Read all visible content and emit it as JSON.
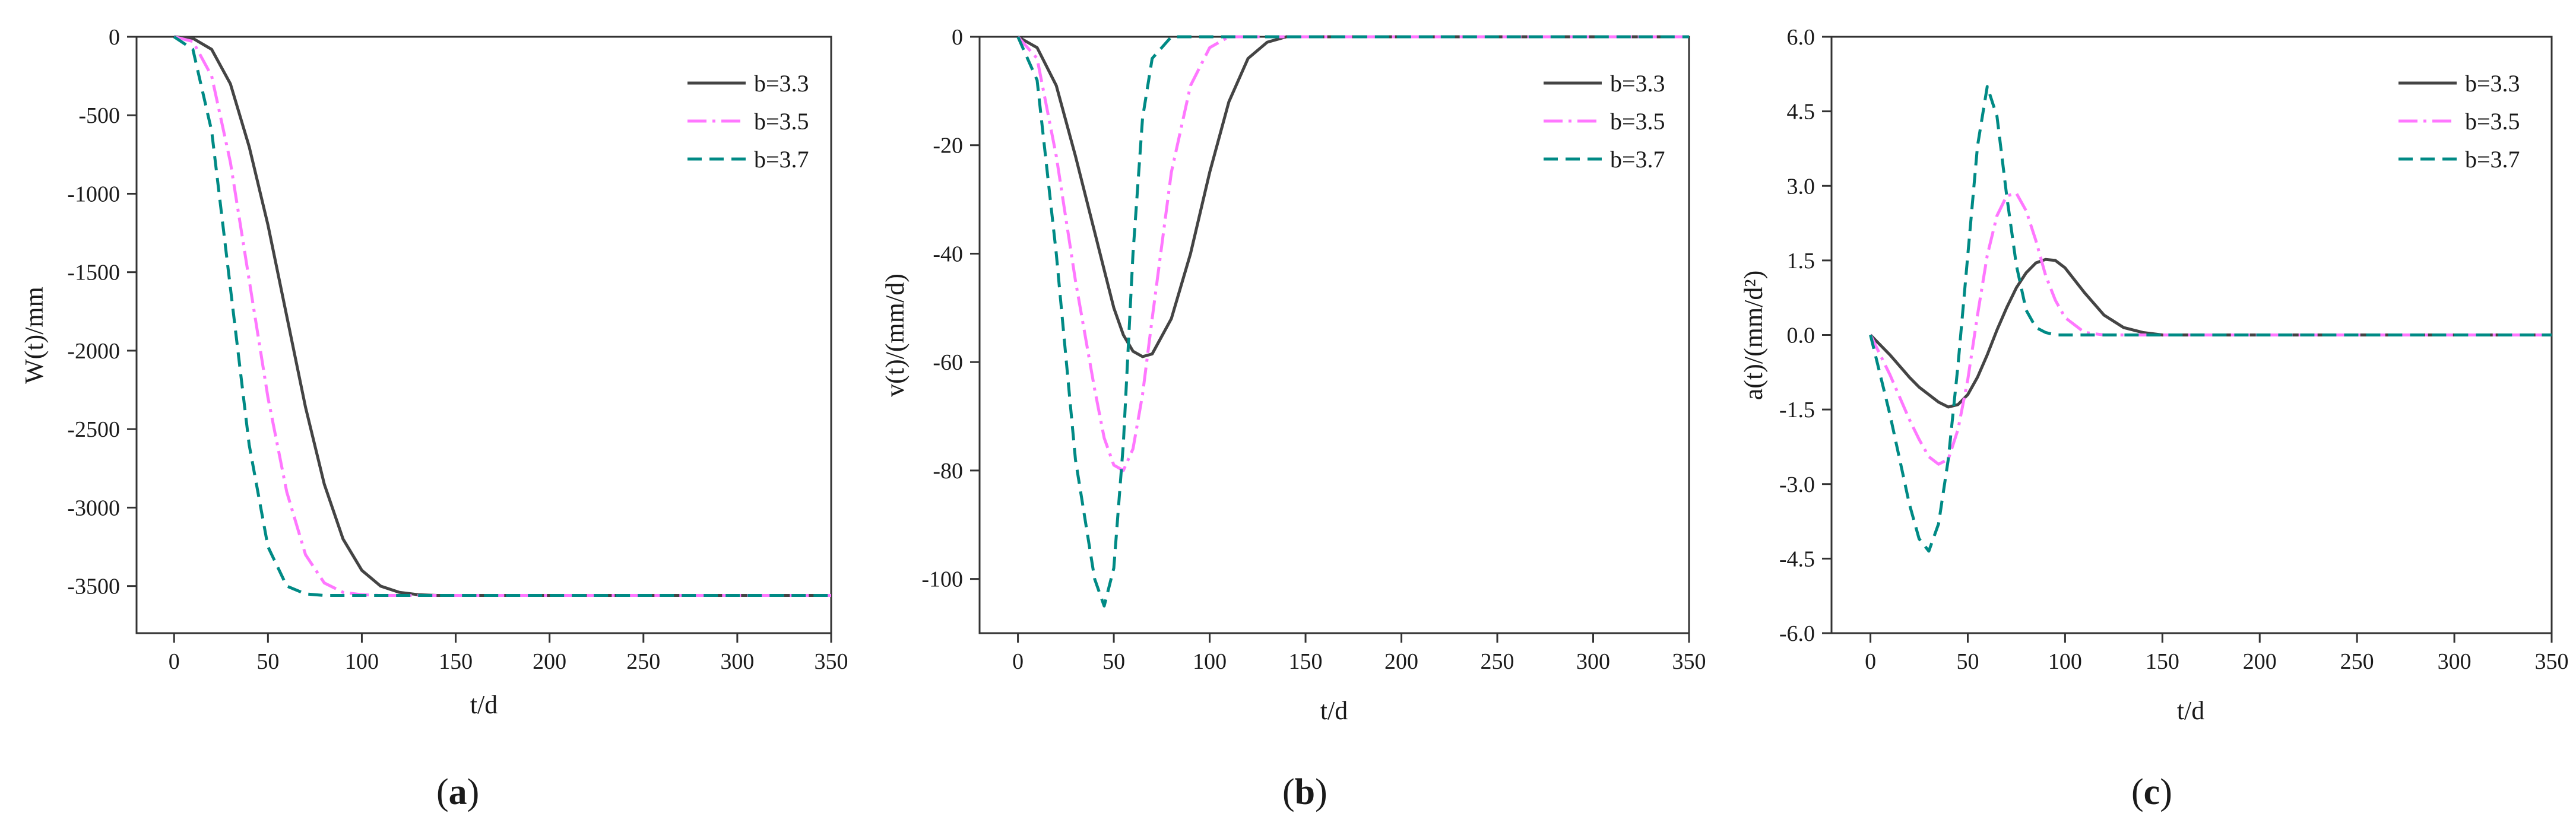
{
  "chart_data": [
    {
      "type": "line",
      "panel_label": "(a)",
      "xlabel": "t/d",
      "ylabel": "W(t)/mm",
      "xlim": [
        -20,
        350
      ],
      "ylim": [
        -3800,
        0
      ],
      "x_ticks": [
        0,
        50,
        100,
        150,
        200,
        250,
        300,
        350
      ],
      "x_tick_labels": [
        "0",
        "50",
        "100",
        "150",
        "200",
        "250",
        "300",
        "350"
      ],
      "y_ticks": [
        0,
        -500,
        -1000,
        -1500,
        -2000,
        -2500,
        -3000,
        -3500
      ],
      "y_tick_labels": [
        "0",
        "-500",
        "-1000",
        "-1500",
        "-2000",
        "-2500",
        "-3000",
        "-3500"
      ],
      "x": [
        0,
        10,
        20,
        30,
        40,
        50,
        60,
        70,
        80,
        90,
        100,
        110,
        120,
        130,
        140,
        150,
        200,
        250,
        300,
        350
      ],
      "series": [
        {
          "name": "b=3.3",
          "values": [
            0,
            -10,
            -80,
            -300,
            -700,
            -1200,
            -1780,
            -2360,
            -2850,
            -3200,
            -3400,
            -3500,
            -3540,
            -3555,
            -3560,
            -3560,
            -3560,
            -3560,
            -3560,
            -3560
          ]
        },
        {
          "name": "b=3.5",
          "values": [
            0,
            -30,
            -250,
            -800,
            -1550,
            -2300,
            -2900,
            -3300,
            -3480,
            -3540,
            -3555,
            -3560,
            -3560,
            -3560,
            -3560,
            -3560,
            -3560,
            -3560,
            -3560,
            -3560
          ]
        },
        {
          "name": "b=3.7",
          "values": [
            0,
            -80,
            -600,
            -1600,
            -2600,
            -3250,
            -3500,
            -3550,
            -3560,
            -3560,
            -3560,
            -3560,
            -3560,
            -3560,
            -3560,
            -3560,
            -3560,
            -3560,
            -3560,
            -3560
          ]
        }
      ]
    },
    {
      "type": "line",
      "panel_label": "(b)",
      "xlabel": "t/d",
      "ylabel": "v(t)/(mm/d)",
      "xlim": [
        -20,
        350
      ],
      "ylim": [
        -110,
        0
      ],
      "x_ticks": [
        0,
        50,
        100,
        150,
        200,
        250,
        300,
        350
      ],
      "x_tick_labels": [
        "0",
        "50",
        "100",
        "150",
        "200",
        "250",
        "300",
        "350"
      ],
      "y_ticks": [
        0,
        -20,
        -40,
        -60,
        -80,
        -100
      ],
      "y_tick_labels": [
        "0",
        "-20",
        "-40",
        "-60",
        "-80",
        "-100"
      ],
      "x": [
        0,
        10,
        20,
        30,
        40,
        45,
        50,
        55,
        60,
        65,
        70,
        80,
        90,
        100,
        110,
        120,
        130,
        140,
        150,
        200,
        250,
        300,
        350
      ],
      "series": [
        {
          "name": "b=3.3",
          "values": [
            0,
            -2,
            -9,
            -22,
            -36,
            -43,
            -50,
            -55,
            -58,
            -59,
            -58.5,
            -52,
            -40,
            -25,
            -12,
            -4,
            -1,
            0,
            0,
            0,
            0,
            0,
            0
          ]
        },
        {
          "name": "b=3.5",
          "values": [
            0,
            -4,
            -22,
            -45,
            -65,
            -74,
            -79,
            -80,
            -76,
            -66,
            -52,
            -25,
            -9,
            -2,
            0,
            0,
            0,
            0,
            0,
            0,
            0,
            0,
            0
          ]
        },
        {
          "name": "b=3.7",
          "values": [
            0,
            -8,
            -40,
            -78,
            -100,
            -105,
            -98,
            -75,
            -40,
            -15,
            -4,
            0,
            0,
            0,
            0,
            0,
            0,
            0,
            0,
            0,
            0,
            0,
            0
          ]
        }
      ]
    },
    {
      "type": "line",
      "panel_label": "(c)",
      "xlabel": "t/d",
      "ylabel": "a(t)/(mm/d²)",
      "xlim": [
        -20,
        350
      ],
      "ylim": [
        -6,
        6
      ],
      "x_ticks": [
        0,
        50,
        100,
        150,
        200,
        250,
        300,
        350
      ],
      "x_tick_labels": [
        "0",
        "50",
        "100",
        "150",
        "200",
        "250",
        "300",
        "350"
      ],
      "y_ticks": [
        6,
        4.5,
        3,
        1.5,
        0,
        -1.5,
        -3,
        -4.5,
        -6
      ],
      "y_tick_labels": [
        "6.0",
        "4.5",
        "3.0",
        "1.5",
        "0.0",
        "-1.5",
        "-3.0",
        "-4.5",
        "-6.0"
      ],
      "x": [
        0,
        10,
        20,
        25,
        30,
        35,
        40,
        45,
        50,
        55,
        60,
        65,
        70,
        75,
        80,
        85,
        90,
        95,
        100,
        110,
        120,
        130,
        140,
        150,
        200,
        250,
        300,
        350
      ],
      "series": [
        {
          "name": "b=3.3",
          "values": [
            0,
            -0.4,
            -0.85,
            -1.05,
            -1.2,
            -1.35,
            -1.45,
            -1.4,
            -1.2,
            -0.85,
            -0.4,
            0.1,
            0.55,
            0.95,
            1.25,
            1.45,
            1.52,
            1.5,
            1.35,
            0.85,
            0.4,
            0.15,
            0.05,
            0,
            0,
            0,
            0,
            0
          ]
        },
        {
          "name": "b=3.5",
          "values": [
            0,
            -0.8,
            -1.7,
            -2.1,
            -2.45,
            -2.6,
            -2.5,
            -1.9,
            -0.9,
            0.4,
            1.6,
            2.4,
            2.8,
            2.85,
            2.5,
            1.9,
            1.2,
            0.7,
            0.35,
            0.05,
            0,
            0,
            0,
            0,
            0,
            0,
            0,
            0
          ]
        },
        {
          "name": "b=3.7",
          "values": [
            0,
            -1.6,
            -3.4,
            -4.1,
            -4.35,
            -3.8,
            -2.5,
            -0.6,
            1.6,
            3.8,
            5.0,
            4.4,
            2.8,
            1.4,
            0.5,
            0.15,
            0.05,
            0,
            0,
            0,
            0,
            0,
            0,
            0,
            0,
            0,
            0,
            0
          ]
        }
      ]
    }
  ],
  "series_styles": [
    {
      "color": "#444444",
      "dash": ""
    },
    {
      "color": "#ff77ff",
      "dash": "32 10 5 10"
    },
    {
      "color": "#008a85",
      "dash": "24 13"
    }
  ]
}
